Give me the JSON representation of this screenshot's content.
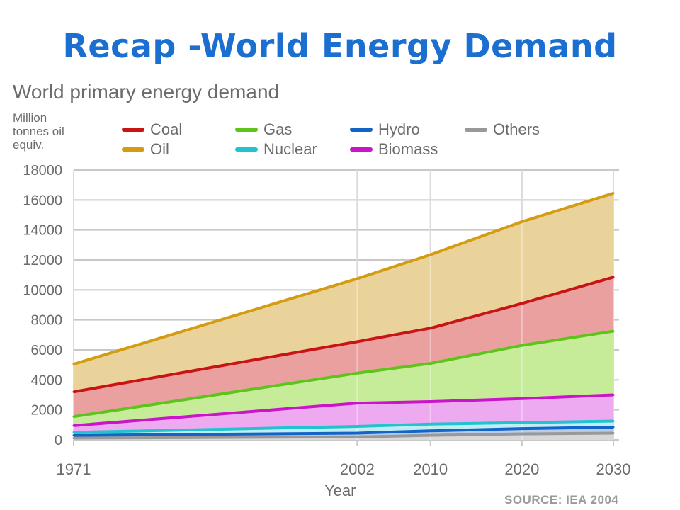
{
  "slide": {
    "title": "Recap -World Energy Demand"
  },
  "chart_data": {
    "type": "area",
    "title": "World primary energy demand",
    "ylabel_lines": [
      "Million",
      "tonnes oil",
      "equiv."
    ],
    "xlabel": "Year",
    "source": "SOURCE: IEA 2004",
    "x": [
      1971,
      2002,
      2010,
      2020,
      2030
    ],
    "xticks": [
      "1971",
      "2002",
      "2010",
      "2020",
      "2030"
    ],
    "ylim": [
      0,
      18000
    ],
    "yticks": [
      "0",
      "2000",
      "4000",
      "6000",
      "8000",
      "10000",
      "12000",
      "14000",
      "16000",
      "18000"
    ],
    "legend_rows": [
      [
        "coal",
        "gas",
        "hydro",
        "others"
      ],
      [
        "oil",
        "nuclear",
        "biomass"
      ]
    ],
    "stacking": "cumulative (top of each band)",
    "series": [
      {
        "key": "others",
        "name": "Others",
        "color": "#999999",
        "values": [
          120,
          200,
          300,
          400,
          450
        ]
      },
      {
        "key": "hydro",
        "name": "Hydro",
        "color": "#1464c8",
        "values": [
          300,
          450,
          600,
          750,
          850
        ]
      },
      {
        "key": "nuclear",
        "name": "Nuclear",
        "color": "#22c2cf",
        "values": [
          500,
          900,
          1050,
          1150,
          1250
        ]
      },
      {
        "key": "biomass",
        "name": "Biomass",
        "color": "#c914c9",
        "values": [
          950,
          2450,
          2550,
          2750,
          3000
        ]
      },
      {
        "key": "gas",
        "name": "Gas",
        "color": "#5ec41c",
        "values": [
          1550,
          4450,
          5100,
          6300,
          7250
        ]
      },
      {
        "key": "coal",
        "name": "Coal",
        "color": "#c81414",
        "values": [
          3200,
          6550,
          7450,
          9100,
          10850
        ]
      },
      {
        "key": "oil",
        "name": "Oil",
        "color": "#d49c10",
        "values": [
          5050,
          10750,
          12350,
          14550,
          16450
        ]
      }
    ],
    "fills": {
      "others": "#d8d8d8",
      "hydro": "#b8cbe8",
      "nuclear": "#bfeef2",
      "biomass": "#eeaaf0",
      "gas": "#c6ec9a",
      "coal": "#eba0a0",
      "oil": "#ead39a"
    },
    "grid": true
  }
}
